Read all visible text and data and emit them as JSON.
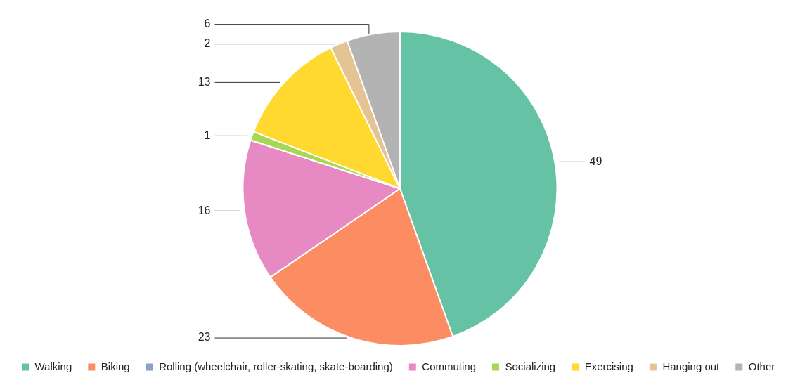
{
  "chart_data": {
    "type": "pie",
    "categories": [
      "Walking",
      "Biking",
      "Rolling (wheelchair, roller-skating, skate-boarding)",
      "Commuting",
      "Socializing",
      "Exercising",
      "Hanging out",
      "Other"
    ],
    "values": [
      49,
      23,
      0,
      16,
      1,
      13,
      2,
      6
    ],
    "colors": [
      "#66c2a5",
      "#fc8d62",
      "#8da0cb",
      "#e78ac3",
      "#a6d854",
      "#ffd92f",
      "#e5c494",
      "#b3b3b3"
    ],
    "value_labels": [
      "49",
      "23",
      null,
      "16",
      "1",
      "13",
      "2",
      "6"
    ],
    "legend": "bottom"
  }
}
